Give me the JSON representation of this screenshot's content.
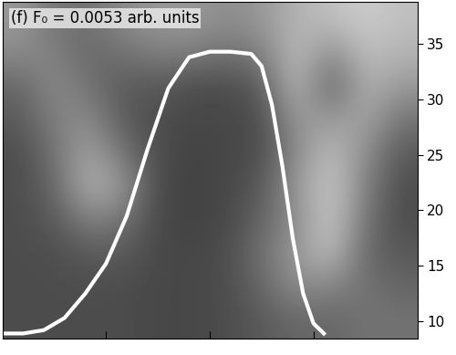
{
  "chart_data": {
    "type": "heatmap",
    "title": "(f) F₀ = 0.0053 arb. units",
    "xlim": [
      0,
      4
    ],
    "xticks": [
      1,
      2,
      3
    ],
    "ylim": [
      8.4,
      38.8
    ],
    "yticks": [
      10,
      15,
      20,
      25,
      30,
      35
    ],
    "tick_labels": "y",
    "zlim": [
      0,
      1
    ],
    "cells": [
      [
        0.3,
        0.3,
        0.3,
        0.3,
        0.28,
        0.28,
        0.3,
        0.35,
        0.4,
        0.4,
        0.45,
        0.45
      ],
      [
        0.3,
        0.3,
        0.3,
        0.3,
        0.28,
        0.28,
        0.3,
        0.4,
        0.55,
        0.5,
        0.45,
        0.4
      ],
      [
        0.3,
        0.3,
        0.35,
        0.35,
        0.28,
        0.28,
        0.3,
        0.45,
        0.6,
        0.75,
        0.4,
        0.35
      ],
      [
        0.3,
        0.35,
        0.5,
        0.45,
        0.28,
        0.26,
        0.28,
        0.4,
        0.55,
        0.8,
        0.45,
        0.3
      ],
      [
        0.3,
        0.4,
        0.7,
        0.6,
        0.28,
        0.26,
        0.28,
        0.35,
        0.6,
        0.8,
        0.5,
        0.3
      ],
      [
        0.3,
        0.45,
        0.65,
        0.45,
        0.3,
        0.26,
        0.28,
        0.3,
        0.55,
        0.75,
        0.55,
        0.35
      ],
      [
        0.35,
        0.5,
        0.55,
        0.35,
        0.3,
        0.28,
        0.28,
        0.3,
        0.6,
        0.6,
        0.65,
        0.45
      ],
      [
        0.4,
        0.55,
        0.45,
        0.35,
        0.35,
        0.3,
        0.3,
        0.35,
        0.75,
        0.35,
        0.7,
        0.6
      ],
      [
        0.55,
        0.5,
        0.4,
        0.45,
        0.5,
        0.5,
        0.45,
        0.5,
        0.75,
        0.55,
        0.75,
        0.7
      ],
      [
        0.6,
        0.45,
        0.45,
        0.55,
        0.6,
        0.6,
        0.55,
        0.6,
        0.7,
        0.75,
        0.8,
        0.75
      ]
    ],
    "series": [
      {
        "type": "line",
        "color": "#ffffff",
        "x": [
          0,
          0.2,
          0.4,
          0.6,
          0.8,
          1.0,
          1.2,
          1.4,
          1.6,
          1.8,
          2.0,
          2.2,
          2.4,
          2.5,
          2.6,
          2.7,
          2.8,
          2.9,
          3.0,
          3.1
        ],
        "values": [
          8.9,
          8.9,
          9.2,
          10.3,
          12.5,
          15.2,
          19.5,
          25.5,
          31.0,
          33.8,
          34.3,
          34.3,
          34.1,
          33.0,
          29.5,
          24.0,
          17.5,
          12.5,
          9.8,
          8.9
        ]
      }
    ]
  }
}
